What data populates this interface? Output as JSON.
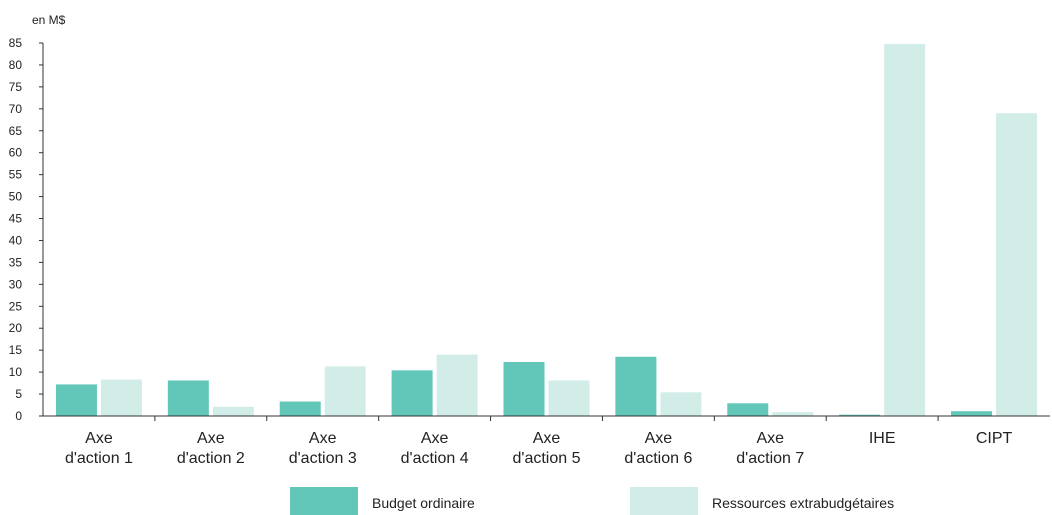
{
  "chart_data": {
    "type": "bar",
    "unit_label": "en M$",
    "categories": [
      [
        "Axe",
        "d'action 1"
      ],
      [
        "Axe",
        "d'action 2"
      ],
      [
        "Axe",
        "d'action 3"
      ],
      [
        "Axe",
        "d'action 4"
      ],
      [
        "Axe",
        "d'action 5"
      ],
      [
        "Axe",
        "d'action 6"
      ],
      [
        "Axe",
        "d'action 7"
      ],
      [
        "IHE"
      ],
      [
        "CIPT"
      ]
    ],
    "series": [
      {
        "name": "Budget ordinaire",
        "color": "#62c6b8",
        "values": [
          7.2,
          8.1,
          3.3,
          10.4,
          12.3,
          13.5,
          2.9,
          0.3,
          1.1
        ]
      },
      {
        "name": "Ressources extrabudgétaires",
        "color": "#d2ede7",
        "values": [
          8.3,
          2.1,
          11.3,
          14.0,
          8.1,
          5.4,
          0.9,
          84.8,
          69.0
        ]
      }
    ],
    "ylim": [
      0,
      85
    ],
    "yticks": [
      0,
      5,
      10,
      15,
      20,
      25,
      30,
      35,
      40,
      45,
      50,
      55,
      60,
      65,
      70,
      75,
      80,
      85
    ],
    "grid": false,
    "legend": "bottom"
  }
}
